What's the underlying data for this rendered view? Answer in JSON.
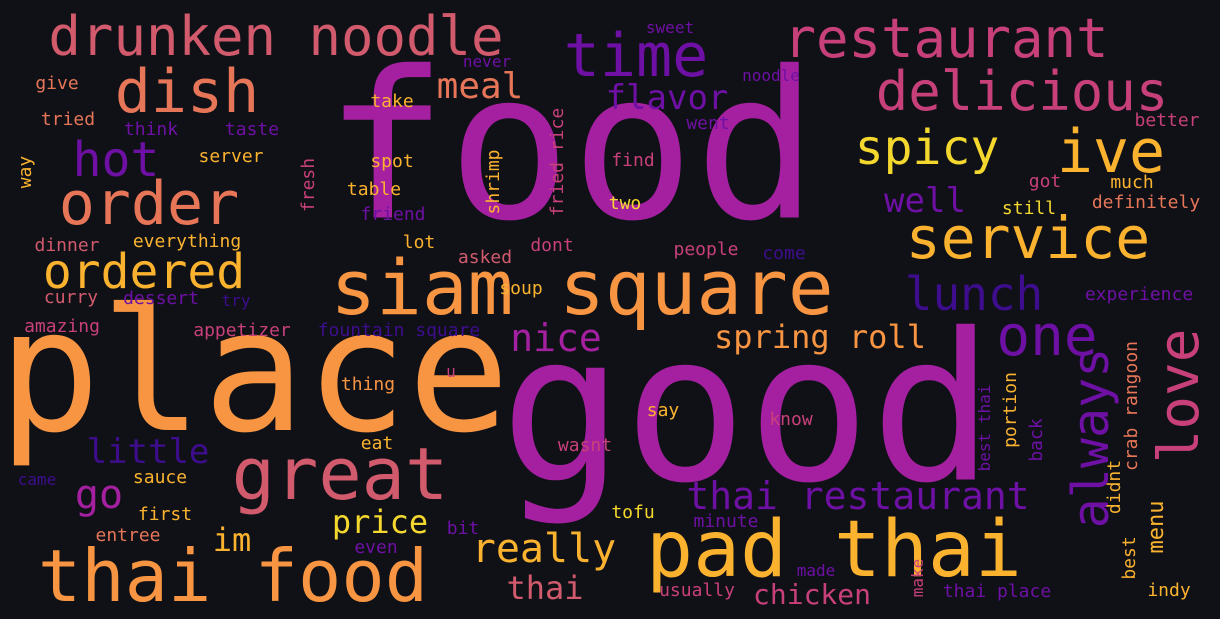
{
  "colors": {
    "background": "#0f1117",
    "palette": {
      "purple": "#a520a0",
      "indigo": "#6e10a4",
      "deep": "#3e0d8e",
      "magenta": "#c8407a",
      "rose": "#d25a6d",
      "coral": "#e77658",
      "orange": "#f79542",
      "amber": "#fbb32f",
      "yellow": "#f5d82e"
    }
  },
  "words": [
    {
      "text": "food",
      "color": "purple"
    },
    {
      "text": "good",
      "color": "purple"
    },
    {
      "text": "place",
      "color": "orange"
    },
    {
      "text": "siam square",
      "color": "orange"
    },
    {
      "text": "pad thai",
      "color": "amber"
    },
    {
      "text": "thai food",
      "color": "orange"
    },
    {
      "text": "great",
      "color": "rose"
    },
    {
      "text": "drunken noodle",
      "color": "rose"
    },
    {
      "text": "restaurant",
      "color": "magenta"
    },
    {
      "text": "dish",
      "color": "coral"
    },
    {
      "text": "time",
      "color": "indigo"
    },
    {
      "text": "delicious",
      "color": "magenta"
    },
    {
      "text": "order",
      "color": "coral"
    },
    {
      "text": "service",
      "color": "amber"
    },
    {
      "text": "spicy",
      "color": "yellow"
    },
    {
      "text": "ive",
      "color": "amber"
    },
    {
      "text": "ordered",
      "color": "amber"
    },
    {
      "text": "hot",
      "color": "indigo"
    },
    {
      "text": "one",
      "color": "indigo"
    },
    {
      "text": "love",
      "color": "magenta"
    },
    {
      "text": "always",
      "color": "indigo"
    },
    {
      "text": "lunch",
      "color": "deep"
    },
    {
      "text": "thai restaurant",
      "color": "indigo"
    },
    {
      "text": "really",
      "color": "amber"
    },
    {
      "text": "go",
      "color": "purple"
    },
    {
      "text": "little",
      "color": "deep"
    },
    {
      "text": "nice",
      "color": "purple"
    },
    {
      "text": "spring roll",
      "color": "orange"
    },
    {
      "text": "meal",
      "color": "coral"
    },
    {
      "text": "flavor",
      "color": "indigo"
    },
    {
      "text": "well",
      "color": "indigo"
    },
    {
      "text": "price",
      "color": "yellow"
    },
    {
      "text": "im",
      "color": "amber"
    },
    {
      "text": "thai",
      "color": "rose"
    },
    {
      "text": "chicken",
      "color": "magenta"
    },
    {
      "text": "menu",
      "color": "amber"
    },
    {
      "text": "crab rangoon",
      "color": "coral"
    },
    {
      "text": "give",
      "color": "coral"
    },
    {
      "text": "tried",
      "color": "coral"
    },
    {
      "text": "think",
      "color": "indigo"
    },
    {
      "text": "taste",
      "color": "indigo"
    },
    {
      "text": "way",
      "color": "amber"
    },
    {
      "text": "take",
      "color": "amber"
    },
    {
      "text": "server",
      "color": "amber"
    },
    {
      "text": "spot",
      "color": "amber"
    },
    {
      "text": "table",
      "color": "amber"
    },
    {
      "text": "fresh",
      "color": "magenta"
    },
    {
      "text": "shrimp",
      "color": "amber"
    },
    {
      "text": "fried rice",
      "color": "magenta"
    },
    {
      "text": "friend",
      "color": "indigo"
    },
    {
      "text": "find",
      "color": "magenta"
    },
    {
      "text": "two",
      "color": "yellow"
    },
    {
      "text": "sweet",
      "color": "indigo"
    },
    {
      "text": "never",
      "color": "indigo"
    },
    {
      "text": "noodle",
      "color": "indigo"
    },
    {
      "text": "went",
      "color": "indigo"
    },
    {
      "text": "better",
      "color": "magenta"
    },
    {
      "text": "got",
      "color": "magenta"
    },
    {
      "text": "much",
      "color": "amber"
    },
    {
      "text": "still",
      "color": "yellow"
    },
    {
      "text": "definitely",
      "color": "coral"
    },
    {
      "text": "dinner",
      "color": "rose"
    },
    {
      "text": "everything",
      "color": "amber"
    },
    {
      "text": "lot",
      "color": "amber"
    },
    {
      "text": "dont",
      "color": "magenta"
    },
    {
      "text": "people",
      "color": "magenta"
    },
    {
      "text": "come",
      "color": "deep"
    },
    {
      "text": "asked",
      "color": "rose"
    },
    {
      "text": "soup",
      "color": "amber"
    },
    {
      "text": "curry",
      "color": "rose"
    },
    {
      "text": "dessert",
      "color": "indigo"
    },
    {
      "text": "try",
      "color": "deep"
    },
    {
      "text": "experience",
      "color": "indigo"
    },
    {
      "text": "amazing",
      "color": "magenta"
    },
    {
      "text": "appetizer",
      "color": "magenta"
    },
    {
      "text": "fountain square",
      "color": "deep"
    },
    {
      "text": "thing",
      "color": "orange"
    },
    {
      "text": "u",
      "color": "magenta"
    },
    {
      "text": "say",
      "color": "amber"
    },
    {
      "text": "know",
      "color": "magenta"
    },
    {
      "text": "portion",
      "color": "amber"
    },
    {
      "text": "best thai",
      "color": "indigo"
    },
    {
      "text": "back",
      "color": "indigo"
    },
    {
      "text": "eat",
      "color": "amber"
    },
    {
      "text": "wasnt",
      "color": "magenta"
    },
    {
      "text": "didnt",
      "color": "amber"
    },
    {
      "text": "came",
      "color": "deep"
    },
    {
      "text": "sauce",
      "color": "amber"
    },
    {
      "text": "first",
      "color": "amber"
    },
    {
      "text": "bit",
      "color": "indigo"
    },
    {
      "text": "tofu",
      "color": "yellow"
    },
    {
      "text": "minute",
      "color": "indigo"
    },
    {
      "text": "entree",
      "color": "coral"
    },
    {
      "text": "even",
      "color": "indigo"
    },
    {
      "text": "made",
      "color": "indigo"
    },
    {
      "text": "best",
      "color": "amber"
    },
    {
      "text": "usually",
      "color": "magenta"
    },
    {
      "text": "make",
      "color": "magenta"
    },
    {
      "text": "thai place",
      "color": "indigo"
    },
    {
      "text": "indy",
      "color": "amber"
    }
  ]
}
